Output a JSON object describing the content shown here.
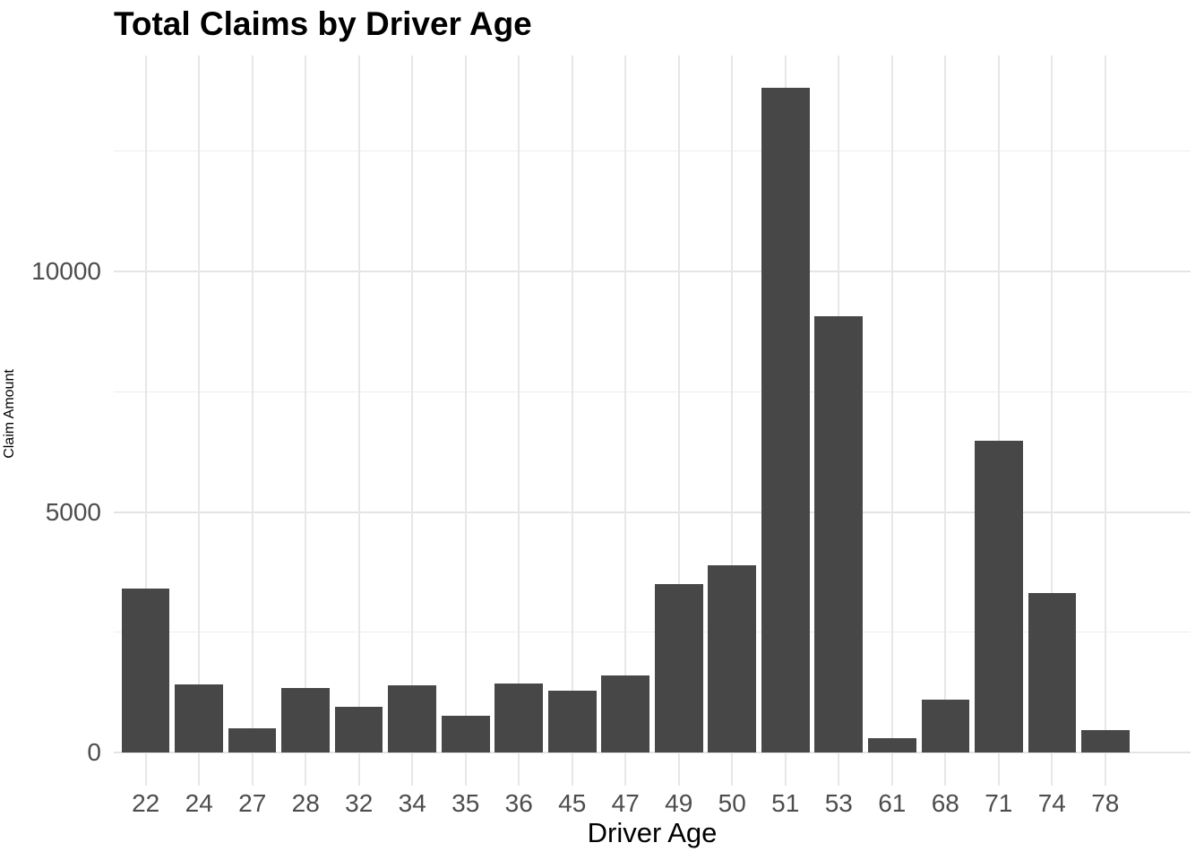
{
  "chart_data": {
    "type": "bar",
    "title": "Total Claims by Driver Age",
    "xlabel": "Driver Age",
    "ylabel": "Claim Amount",
    "categories": [
      "22",
      "24",
      "27",
      "28",
      "32",
      "34",
      "35",
      "36",
      "45",
      "47",
      "49",
      "50",
      "51",
      "53",
      "61",
      "68",
      "71",
      "74",
      "78"
    ],
    "values": [
      3400,
      1420,
      500,
      1340,
      950,
      1400,
      770,
      1440,
      1280,
      1600,
      3500,
      3890,
      13810,
      9070,
      300,
      1100,
      6480,
      3320,
      460
    ],
    "y_tick_labels": [
      "0",
      "5000",
      "10000"
    ],
    "y_ticks": [
      0,
      5000,
      10000
    ],
    "y_minor_ticks": [
      2500,
      7500,
      12500
    ],
    "ylim": [
      -690,
      14490
    ],
    "grid": true,
    "legend_position": "none",
    "style": "ggplot-minimal",
    "colors": {
      "bar": "#474747",
      "grid_major": "#E4E4E4",
      "grid_minor": "#EDEDED",
      "tick_label": "#4D4D4D",
      "title": "#000000",
      "axis_title": "#000000",
      "background": "#FFFFFF"
    }
  }
}
